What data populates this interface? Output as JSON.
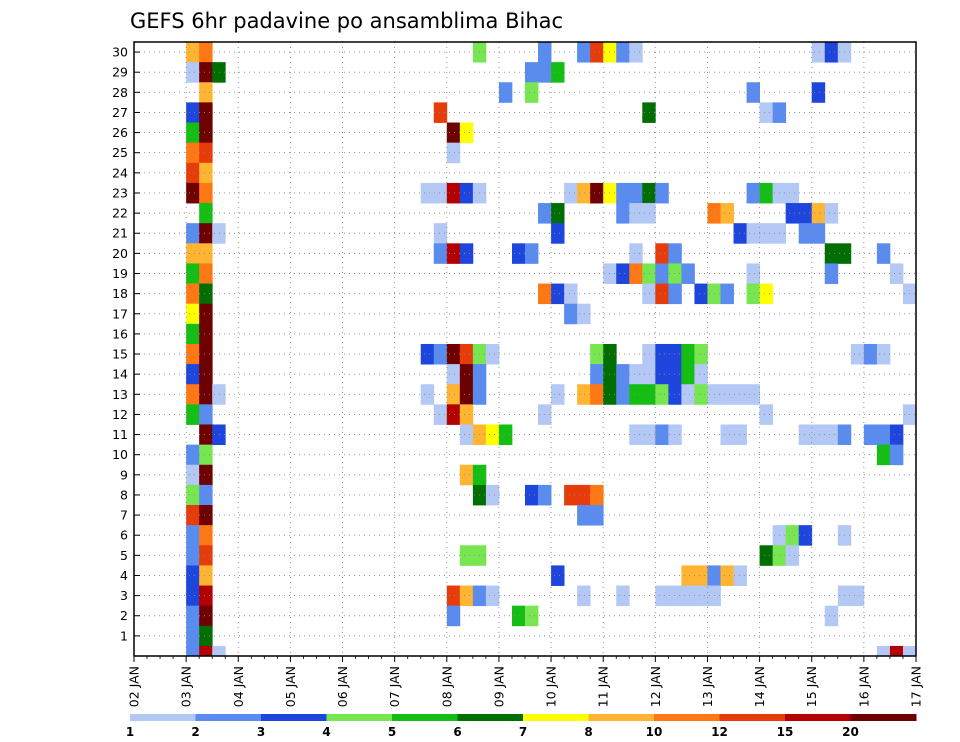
{
  "chart_data": {
    "type": "heatmap",
    "title": "GEFS 6hr padavine po ansamblima Bihac",
    "xlabel": "",
    "ylabel": "",
    "x_tick_labels": [
      "02 JAN",
      "03 JAN",
      "04 JAN",
      "05 JAN",
      "06 JAN",
      "07 JAN",
      "08 JAN",
      "09 JAN",
      "10 JAN",
      "11 JAN",
      "12 JAN",
      "13 JAN",
      "14 JAN",
      "15 JAN",
      "16 JAN",
      "17 JAN"
    ],
    "y_tick_labels": [
      "1",
      "2",
      "3",
      "4",
      "5",
      "6",
      "7",
      "8",
      "9",
      "10",
      "11",
      "12",
      "13",
      "14",
      "15",
      "16",
      "17",
      "18",
      "19",
      "20",
      "21",
      "22",
      "23",
      "24",
      "25",
      "26",
      "27",
      "28",
      "29",
      "30"
    ],
    "xlim": [
      0,
      60
    ],
    "ylim": [
      0,
      30.5
    ],
    "grid": true,
    "legend_placement": "bottom",
    "colorbar": {
      "labels": [
        "1",
        "2",
        "3",
        "4",
        "5",
        "6",
        "7",
        "8",
        "10",
        "12",
        "15",
        "20"
      ],
      "colors": [
        "#b4c8f5",
        "#5a8cf0",
        "#1e46dc",
        "#78e650",
        "#14be14",
        "#006e00",
        "#ffff00",
        "#ffb432",
        "#ff7814",
        "#e63c0a",
        "#b40000",
        "#6e0000"
      ]
    },
    "level_colors": {
      "1": "#b4c8f5",
      "2": "#5a8cf0",
      "3": "#1e46dc",
      "4": "#78e650",
      "5": "#14be14",
      "6": "#006e00",
      "7": "#ffff00",
      "8": "#ffb432",
      "10": "#ff7814",
      "12": "#e63c0a",
      "15": "#b40000",
      "20": "#6e0000"
    },
    "cells_note": "each cell: [member, 6h step index from 02 JAN 00Z, precipitation class]",
    "cells": [
      [
        30,
        4,
        8
      ],
      [
        30,
        5,
        10
      ],
      [
        30,
        26,
        4
      ],
      [
        30,
        31,
        2
      ],
      [
        30,
        34,
        2
      ],
      [
        30,
        35,
        12
      ],
      [
        30,
        36,
        7
      ],
      [
        30,
        37,
        2
      ],
      [
        30,
        38,
        1
      ],
      [
        30,
        52,
        1
      ],
      [
        30,
        53,
        3
      ],
      [
        30,
        54,
        1
      ],
      [
        29,
        4,
        1
      ],
      [
        29,
        5,
        20
      ],
      [
        29,
        6,
        6
      ],
      [
        29,
        30,
        2
      ],
      [
        29,
        31,
        2
      ],
      [
        29,
        32,
        5
      ],
      [
        28,
        5,
        8
      ],
      [
        28,
        28,
        2
      ],
      [
        28,
        30,
        4
      ],
      [
        28,
        47,
        2
      ],
      [
        28,
        52,
        3
      ],
      [
        27,
        4,
        3
      ],
      [
        27,
        5,
        20
      ],
      [
        27,
        23,
        12
      ],
      [
        27,
        39,
        6
      ],
      [
        27,
        48,
        1
      ],
      [
        27,
        49,
        2
      ],
      [
        26,
        4,
        5
      ],
      [
        26,
        5,
        20
      ],
      [
        26,
        24,
        20
      ],
      [
        26,
        25,
        7
      ],
      [
        25,
        4,
        10
      ],
      [
        25,
        5,
        12
      ],
      [
        25,
        24,
        1
      ],
      [
        24,
        4,
        12
      ],
      [
        24,
        5,
        8
      ],
      [
        23,
        4,
        20
      ],
      [
        23,
        5,
        10
      ],
      [
        23,
        22,
        1
      ],
      [
        23,
        23,
        1
      ],
      [
        23,
        24,
        15
      ],
      [
        23,
        25,
        3
      ],
      [
        23,
        26,
        1
      ],
      [
        23,
        33,
        1
      ],
      [
        23,
        34,
        8
      ],
      [
        23,
        35,
        20
      ],
      [
        23,
        36,
        7
      ],
      [
        23,
        37,
        2
      ],
      [
        23,
        38,
        2
      ],
      [
        23,
        39,
        6
      ],
      [
        23,
        40,
        2
      ],
      [
        23,
        47,
        2
      ],
      [
        23,
        48,
        5
      ],
      [
        23,
        49,
        1
      ],
      [
        23,
        50,
        1
      ],
      [
        22,
        5,
        5
      ],
      [
        22,
        31,
        2
      ],
      [
        22,
        32,
        6
      ],
      [
        22,
        37,
        2
      ],
      [
        22,
        38,
        1
      ],
      [
        22,
        39,
        1
      ],
      [
        22,
        44,
        10
      ],
      [
        22,
        45,
        8
      ],
      [
        22,
        50,
        3
      ],
      [
        22,
        51,
        3
      ],
      [
        22,
        52,
        8
      ],
      [
        22,
        53,
        1
      ],
      [
        21,
        4,
        2
      ],
      [
        21,
        5,
        20
      ],
      [
        21,
        6,
        1
      ],
      [
        21,
        23,
        1
      ],
      [
        21,
        32,
        3
      ],
      [
        21,
        46,
        3
      ],
      [
        21,
        47,
        1
      ],
      [
        21,
        48,
        1
      ],
      [
        21,
        49,
        1
      ],
      [
        21,
        51,
        2
      ],
      [
        21,
        52,
        2
      ],
      [
        20,
        4,
        8
      ],
      [
        20,
        5,
        8
      ],
      [
        20,
        23,
        2
      ],
      [
        20,
        24,
        15
      ],
      [
        20,
        25,
        3
      ],
      [
        20,
        29,
        3
      ],
      [
        20,
        30,
        2
      ],
      [
        20,
        38,
        1
      ],
      [
        20,
        40,
        12
      ],
      [
        20,
        41,
        2
      ],
      [
        20,
        53,
        6
      ],
      [
        20,
        54,
        6
      ],
      [
        20,
        57,
        2
      ],
      [
        19,
        4,
        5
      ],
      [
        19,
        5,
        10
      ],
      [
        19,
        36,
        1
      ],
      [
        19,
        37,
        3
      ],
      [
        19,
        38,
        10
      ],
      [
        19,
        39,
        4
      ],
      [
        19,
        40,
        2
      ],
      [
        19,
        41,
        4
      ],
      [
        19,
        42,
        2
      ],
      [
        19,
        47,
        1
      ],
      [
        19,
        53,
        2
      ],
      [
        19,
        58,
        1
      ],
      [
        18,
        4,
        10
      ],
      [
        18,
        5,
        6
      ],
      [
        18,
        31,
        10
      ],
      [
        18,
        32,
        3
      ],
      [
        18,
        33,
        1
      ],
      [
        18,
        39,
        1
      ],
      [
        18,
        40,
        12
      ],
      [
        18,
        41,
        2
      ],
      [
        18,
        43,
        3
      ],
      [
        18,
        44,
        4
      ],
      [
        18,
        45,
        2
      ],
      [
        18,
        47,
        4
      ],
      [
        18,
        48,
        7
      ],
      [
        18,
        59,
        1
      ],
      [
        17,
        4,
        7
      ],
      [
        17,
        5,
        20
      ],
      [
        17,
        33,
        2
      ],
      [
        17,
        34,
        1
      ],
      [
        16,
        4,
        5
      ],
      [
        16,
        5,
        20
      ],
      [
        15,
        4,
        10
      ],
      [
        15,
        5,
        20
      ],
      [
        15,
        22,
        3
      ],
      [
        15,
        23,
        2
      ],
      [
        15,
        24,
        20
      ],
      [
        15,
        25,
        12
      ],
      [
        15,
        26,
        4
      ],
      [
        15,
        27,
        1
      ],
      [
        15,
        35,
        4
      ],
      [
        15,
        36,
        6
      ],
      [
        15,
        39,
        1
      ],
      [
        15,
        40,
        3
      ],
      [
        15,
        41,
        3
      ],
      [
        15,
        42,
        5
      ],
      [
        15,
        43,
        4
      ],
      [
        15,
        55,
        1
      ],
      [
        15,
        56,
        2
      ],
      [
        15,
        57,
        1
      ],
      [
        14,
        4,
        3
      ],
      [
        14,
        5,
        20
      ],
      [
        14,
        24,
        1
      ],
      [
        14,
        25,
        20
      ],
      [
        14,
        26,
        2
      ],
      [
        14,
        35,
        2
      ],
      [
        14,
        36,
        6
      ],
      [
        14,
        37,
        2
      ],
      [
        14,
        38,
        1
      ],
      [
        14,
        39,
        1
      ],
      [
        14,
        40,
        3
      ],
      [
        14,
        41,
        3
      ],
      [
        14,
        42,
        5
      ],
      [
        14,
        43,
        1
      ],
      [
        13,
        4,
        10
      ],
      [
        13,
        5,
        20
      ],
      [
        13,
        6,
        1
      ],
      [
        13,
        22,
        1
      ],
      [
        13,
        24,
        8
      ],
      [
        13,
        25,
        20
      ],
      [
        13,
        26,
        2
      ],
      [
        13,
        32,
        1
      ],
      [
        13,
        34,
        8
      ],
      [
        13,
        35,
        10
      ],
      [
        13,
        36,
        6
      ],
      [
        13,
        37,
        2
      ],
      [
        13,
        38,
        5
      ],
      [
        13,
        39,
        5
      ],
      [
        13,
        40,
        4
      ],
      [
        13,
        41,
        3
      ],
      [
        13,
        42,
        1
      ],
      [
        13,
        43,
        4
      ],
      [
        13,
        44,
        1
      ],
      [
        13,
        45,
        1
      ],
      [
        13,
        46,
        1
      ],
      [
        13,
        47,
        1
      ],
      [
        12,
        4,
        5
      ],
      [
        12,
        5,
        2
      ],
      [
        12,
        23,
        1
      ],
      [
        12,
        24,
        15
      ],
      [
        12,
        25,
        8
      ],
      [
        12,
        31,
        1
      ],
      [
        12,
        48,
        1
      ],
      [
        12,
        59,
        1
      ],
      [
        11,
        5,
        20
      ],
      [
        11,
        6,
        3
      ],
      [
        11,
        25,
        1
      ],
      [
        11,
        26,
        8
      ],
      [
        11,
        27,
        7
      ],
      [
        11,
        28,
        5
      ],
      [
        11,
        38,
        1
      ],
      [
        11,
        39,
        1
      ],
      [
        11,
        40,
        2
      ],
      [
        11,
        41,
        1
      ],
      [
        11,
        45,
        1
      ],
      [
        11,
        46,
        1
      ],
      [
        11,
        51,
        1
      ],
      [
        11,
        52,
        1
      ],
      [
        11,
        53,
        1
      ],
      [
        11,
        54,
        2
      ],
      [
        11,
        56,
        2
      ],
      [
        11,
        57,
        2
      ],
      [
        11,
        58,
        3
      ],
      [
        10,
        4,
        2
      ],
      [
        10,
        5,
        4
      ],
      [
        10,
        57,
        5
      ],
      [
        10,
        58,
        2
      ],
      [
        9,
        4,
        1
      ],
      [
        9,
        5,
        20
      ],
      [
        9,
        25,
        8
      ],
      [
        9,
        26,
        5
      ],
      [
        8,
        4,
        4
      ],
      [
        8,
        5,
        2
      ],
      [
        8,
        26,
        6
      ],
      [
        8,
        27,
        1
      ],
      [
        8,
        30,
        3
      ],
      [
        8,
        31,
        2
      ],
      [
        8,
        33,
        12
      ],
      [
        8,
        34,
        12
      ],
      [
        8,
        35,
        10
      ],
      [
        7,
        4,
        12
      ],
      [
        7,
        5,
        20
      ],
      [
        7,
        34,
        2
      ],
      [
        7,
        35,
        2
      ],
      [
        6,
        4,
        2
      ],
      [
        6,
        5,
        10
      ],
      [
        6,
        49,
        1
      ],
      [
        6,
        50,
        4
      ],
      [
        6,
        51,
        3
      ],
      [
        6,
        54,
        1
      ],
      [
        5,
        4,
        2
      ],
      [
        5,
        5,
        12
      ],
      [
        5,
        25,
        4
      ],
      [
        5,
        26,
        4
      ],
      [
        5,
        48,
        6
      ],
      [
        5,
        49,
        4
      ],
      [
        5,
        50,
        1
      ],
      [
        4,
        4,
        3
      ],
      [
        4,
        5,
        8
      ],
      [
        4,
        32,
        3
      ],
      [
        4,
        42,
        8
      ],
      [
        4,
        43,
        8
      ],
      [
        4,
        44,
        2
      ],
      [
        4,
        45,
        8
      ],
      [
        4,
        46,
        1
      ],
      [
        3,
        4,
        3
      ],
      [
        3,
        5,
        15
      ],
      [
        3,
        24,
        12
      ],
      [
        3,
        25,
        8
      ],
      [
        3,
        26,
        2
      ],
      [
        3,
        27,
        1
      ],
      [
        3,
        34,
        1
      ],
      [
        3,
        37,
        1
      ],
      [
        3,
        40,
        1
      ],
      [
        3,
        41,
        1
      ],
      [
        3,
        42,
        1
      ],
      [
        3,
        43,
        1
      ],
      [
        3,
        44,
        1
      ],
      [
        3,
        54,
        1
      ],
      [
        3,
        55,
        1
      ],
      [
        2,
        4,
        2
      ],
      [
        2,
        5,
        20
      ],
      [
        2,
        24,
        2
      ],
      [
        2,
        29,
        5
      ],
      [
        2,
        30,
        4
      ],
      [
        2,
        53,
        1
      ],
      [
        1,
        4,
        2
      ],
      [
        1,
        5,
        6
      ],
      [
        0,
        4,
        2
      ],
      [
        0,
        5,
        15
      ],
      [
        0,
        6,
        1
      ],
      [
        0,
        57,
        1
      ],
      [
        0,
        58,
        15
      ],
      [
        0,
        59,
        1
      ]
    ]
  }
}
